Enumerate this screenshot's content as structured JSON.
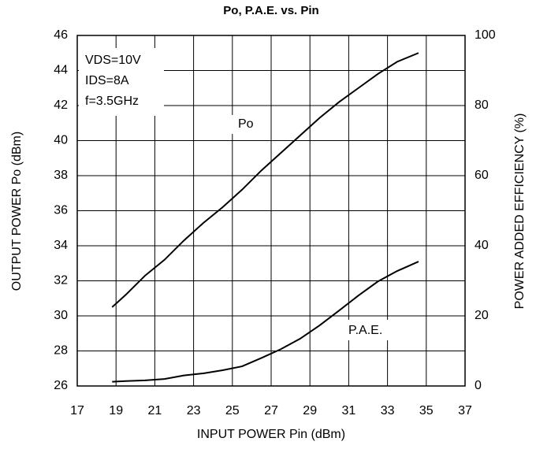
{
  "chart_data": {
    "type": "line",
    "title": "Po, P.A.E. vs. Pin",
    "xlabel": "INPUT POWER Pin (dBm)",
    "ylabel": "OUTPUT POWER Po (dBm)",
    "y2label": "POWER ADDED EFFICIENCY  (%)",
    "annotations": [
      "VDS=10V",
      "IDS=8A",
      "f=3.5GHz",
      "Po",
      "P.A.E."
    ],
    "x": [
      18.8,
      19.5,
      20.5,
      21.5,
      22.5,
      23.5,
      24.5,
      25.5,
      26.5,
      27.5,
      28.5,
      29.5,
      30.5,
      31.5,
      32.5,
      33.5,
      34.6
    ],
    "series": [
      {
        "name": "Po",
        "color": "#000000",
        "values": [
          30.5,
          31.2,
          32.3,
          33.2,
          34.3,
          35.3,
          36.2,
          37.2,
          38.3,
          39.3,
          40.3,
          41.3,
          42.2,
          43.0,
          43.8,
          44.5,
          45.0
        ]
      },
      {
        "name": "P.A.E.",
        "color": "#000000",
        "axis": "y2",
        "values": [
          1.2,
          1.4,
          1.6,
          2.0,
          3.0,
          3.6,
          4.5,
          5.6,
          8,
          10.5,
          13.5,
          17.3,
          21.5,
          25.8,
          29.8,
          32.8,
          35.5
        ]
      }
    ],
    "xlim": [
      17,
      37
    ],
    "xticks": [
      17,
      19,
      21,
      23,
      25,
      27,
      29,
      31,
      33,
      35,
      37
    ],
    "ylim": [
      26,
      46
    ],
    "yticks": [
      26,
      28,
      30,
      32,
      34,
      36,
      38,
      40,
      42,
      44,
      46
    ],
    "y2lim": [
      0,
      100
    ],
    "y2ticks": [
      0,
      20,
      40,
      60,
      80,
      100
    ],
    "grid": true
  }
}
